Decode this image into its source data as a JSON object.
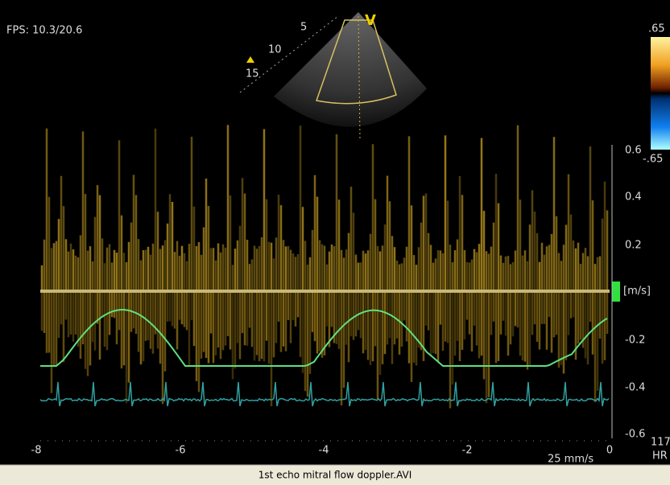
{
  "header": {
    "fps": "FPS: 10.3/20.6"
  },
  "sector": {
    "depth_labels": [
      "5",
      "10",
      "15"
    ],
    "marker": "V"
  },
  "color_bar": {
    "top": ".65",
    "bottom": "-.65"
  },
  "velocity_axis": {
    "unit": "[m/s]",
    "labels": [
      "0.6",
      "0.4",
      "0.2",
      "-0.2",
      "-0.4",
      "-0.6"
    ]
  },
  "time_axis": {
    "labels": [
      "-8",
      "-6",
      "-4",
      "-2",
      "0"
    ],
    "sweep": "25 mm/s"
  },
  "heart_rate": {
    "value": "117",
    "label": "HR"
  },
  "footer": {
    "filename": "1st echo mitral flow doppler.AVI"
  }
}
